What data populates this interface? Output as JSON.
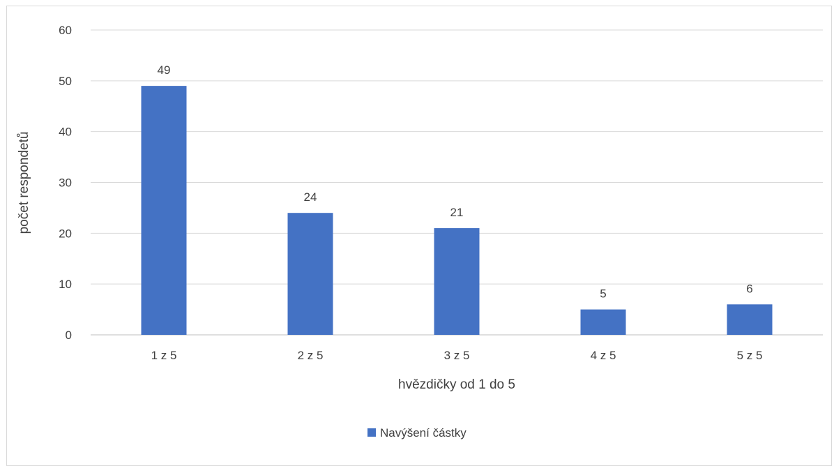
{
  "chart_data": {
    "type": "bar",
    "categories": [
      "1 z 5",
      "2 z 5",
      "3 z 5",
      "4 z 5",
      "5 z 5"
    ],
    "series": [
      {
        "name": "Navýšení částky",
        "values": [
          49,
          24,
          21,
          5,
          6
        ],
        "color": "#4472c4"
      }
    ],
    "xlabel": "hvězdičky od 1 do 5",
    "ylabel": "počet respondetů",
    "ylim": [
      0,
      60
    ],
    "yticks": [
      0,
      10,
      20,
      30,
      40,
      50,
      60
    ],
    "grid": true,
    "data_labels": true,
    "legend_position": "bottom"
  }
}
